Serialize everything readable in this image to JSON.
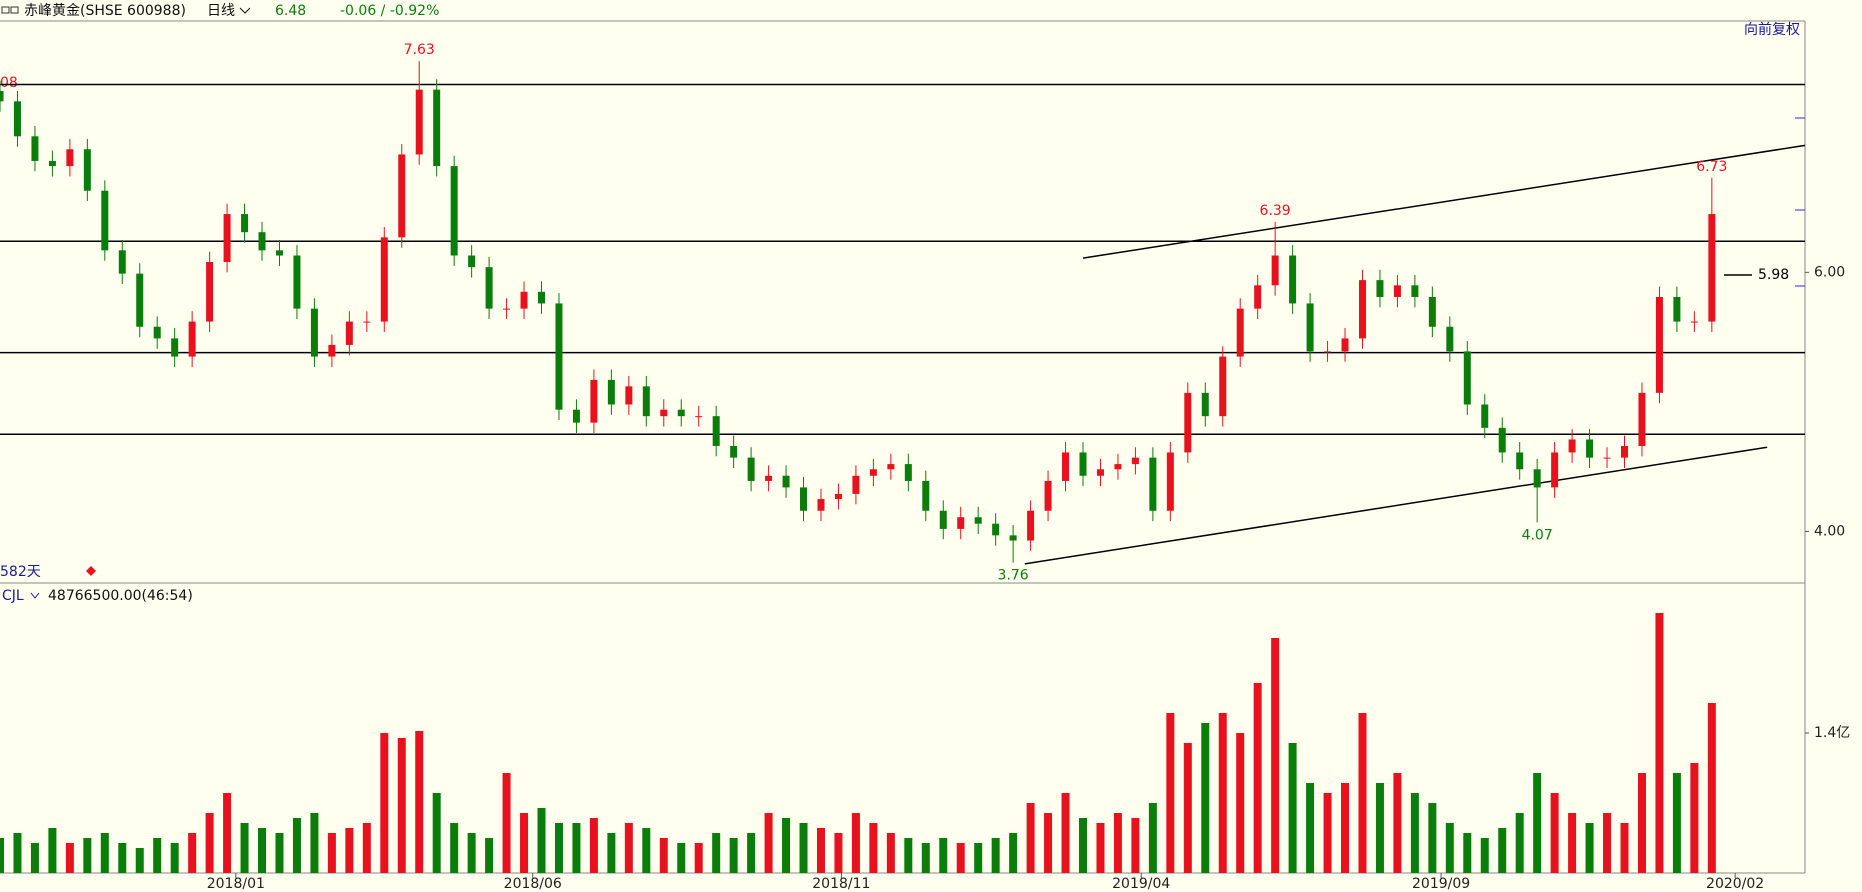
{
  "chart_data": {
    "type": "candlestick",
    "title": "赤峰黄金(SHSE 600988)",
    "period": "日线",
    "price": 6.48,
    "change": "-0.06 / -0.92%",
    "adjust": "向前复权",
    "day_count": "582天",
    "edge_label": "08",
    "up_color": "#e8121e",
    "down_color": "#0a7d0a",
    "x": [
      0,
      6,
      12,
      18,
      24,
      30,
      36,
      42,
      48,
      54,
      60,
      66,
      72,
      78,
      84,
      90,
      96,
      102,
      108,
      114,
      120,
      126,
      132,
      138,
      144,
      150,
      156,
      162,
      168,
      174,
      180,
      186,
      192,
      198,
      204,
      210,
      216,
      222,
      228,
      234,
      240,
      246,
      252,
      258,
      264,
      270,
      276,
      282,
      288,
      294,
      300,
      306,
      312,
      318,
      324,
      330,
      336,
      342,
      348,
      354,
      360,
      366,
      372,
      378,
      384,
      390,
      396,
      402,
      408,
      414,
      420,
      426,
      432,
      438,
      444,
      450,
      456,
      462,
      468,
      474,
      480,
      486,
      492,
      498,
      504,
      510,
      516,
      522,
      528,
      534,
      540,
      546,
      552,
      558,
      564,
      570,
      576,
      582,
      588
    ],
    "open": [
      7.4,
      7.32,
      7.05,
      6.86,
      6.82,
      6.95,
      6.63,
      6.17,
      5.99,
      5.58,
      5.49,
      5.35,
      5.62,
      6.08,
      6.45,
      6.31,
      6.17,
      6.13,
      5.72,
      5.35,
      5.44,
      5.62,
      5.62,
      6.27,
      6.91,
      7.41,
      6.82,
      6.13,
      6.04,
      5.72,
      5.72,
      5.85,
      5.76,
      4.94,
      4.84,
      5.17,
      4.98,
      5.12,
      4.89,
      4.94,
      4.89,
      4.89,
      4.66,
      4.57,
      4.39,
      4.43,
      4.34,
      4.16,
      4.25,
      4.29,
      4.43,
      4.48,
      4.52,
      4.39,
      4.16,
      4.02,
      4.11,
      4.06,
      3.97,
      3.93,
      4.16,
      4.39,
      4.61,
      4.43,
      4.48,
      4.52,
      4.57,
      4.16,
      4.61,
      5.07,
      4.89,
      5.35,
      5.72,
      5.9,
      6.13,
      5.76,
      5.39,
      5.39,
      5.49,
      5.94,
      5.81,
      5.9,
      5.81,
      5.58,
      5.39,
      4.98,
      4.8,
      4.61,
      4.48,
      4.34,
      4.61,
      4.71,
      4.57,
      4.57,
      4.66,
      5.07,
      5.81,
      5.62,
      5.62
    ],
    "high": [
      7.48,
      7.4,
      7.13,
      6.94,
      7.03,
      7.03,
      6.71,
      6.25,
      6.07,
      5.66,
      5.57,
      5.7,
      6.16,
      6.53,
      6.53,
      6.39,
      6.25,
      6.21,
      5.8,
      5.52,
      5.7,
      5.7,
      6.35,
      6.99,
      7.63,
      7.49,
      6.9,
      6.21,
      6.12,
      5.8,
      5.93,
      5.93,
      5.84,
      5.02,
      5.25,
      5.25,
      5.2,
      5.2,
      5.02,
      5.02,
      4.97,
      4.97,
      4.74,
      4.65,
      4.51,
      4.51,
      4.42,
      4.33,
      4.37,
      4.51,
      4.56,
      4.6,
      4.6,
      4.47,
      4.24,
      4.19,
      4.19,
      4.14,
      4.05,
      4.24,
      4.47,
      4.69,
      4.69,
      4.56,
      4.6,
      4.65,
      4.65,
      4.69,
      5.15,
      5.15,
      5.43,
      5.8,
      5.98,
      6.39,
      6.21,
      5.84,
      5.47,
      5.57,
      6.02,
      6.02,
      5.98,
      5.98,
      5.89,
      5.66,
      5.47,
      5.06,
      4.88,
      4.69,
      4.56,
      4.69,
      4.79,
      4.79,
      4.65,
      4.74,
      5.15,
      5.89,
      5.89,
      5.7,
      6.73
    ],
    "low": [
      7.24,
      6.97,
      6.78,
      6.74,
      6.74,
      6.55,
      6.09,
      5.91,
      5.5,
      5.41,
      5.27,
      5.27,
      5.54,
      6.0,
      6.23,
      6.09,
      6.05,
      5.64,
      5.27,
      5.27,
      5.36,
      5.54,
      5.54,
      6.19,
      6.83,
      6.74,
      6.05,
      5.96,
      5.64,
      5.64,
      5.64,
      5.68,
      4.86,
      4.76,
      4.76,
      4.9,
      4.9,
      4.81,
      4.81,
      4.81,
      4.81,
      4.58,
      4.49,
      4.31,
      4.31,
      4.26,
      4.08,
      4.08,
      4.17,
      4.21,
      4.35,
      4.4,
      4.31,
      4.08,
      3.94,
      3.94,
      3.98,
      3.89,
      3.76,
      3.85,
      4.08,
      4.31,
      4.35,
      4.35,
      4.4,
      4.44,
      4.08,
      4.08,
      4.53,
      4.81,
      4.81,
      5.27,
      5.64,
      5.82,
      5.68,
      5.31,
      5.31,
      5.31,
      5.41,
      5.73,
      5.73,
      5.73,
      5.5,
      5.31,
      4.9,
      4.72,
      4.53,
      4.4,
      4.07,
      4.26,
      4.53,
      4.49,
      4.49,
      4.49,
      4.58,
      4.99,
      5.54,
      5.54,
      5.54
    ],
    "close": [
      7.32,
      7.05,
      6.86,
      6.82,
      6.95,
      6.63,
      6.17,
      5.99,
      5.58,
      5.49,
      5.35,
      5.62,
      6.08,
      6.45,
      6.31,
      6.17,
      6.13,
      5.72,
      5.35,
      5.44,
      5.62,
      5.62,
      6.27,
      6.91,
      7.41,
      6.82,
      6.13,
      6.04,
      5.72,
      5.72,
      5.85,
      5.76,
      4.94,
      4.84,
      5.17,
      4.98,
      5.12,
      4.89,
      4.94,
      4.89,
      4.89,
      4.66,
      4.57,
      4.39,
      4.43,
      4.34,
      4.16,
      4.25,
      4.29,
      4.43,
      4.48,
      4.52,
      4.39,
      4.16,
      4.02,
      4.11,
      4.06,
      3.97,
      3.93,
      4.16,
      4.39,
      4.61,
      4.43,
      4.48,
      4.52,
      4.57,
      4.16,
      4.61,
      5.07,
      4.89,
      5.35,
      5.72,
      5.9,
      6.13,
      5.76,
      5.39,
      5.39,
      5.49,
      5.94,
      5.81,
      5.9,
      5.81,
      5.58,
      5.39,
      4.98,
      4.8,
      4.61,
      4.48,
      4.34,
      4.61,
      4.71,
      4.57,
      4.57,
      4.66,
      5.07,
      5.81,
      5.62,
      5.62,
      6.45
    ],
    "high_labels": [
      24,
      73,
      98
    ],
    "low_labels": [
      58,
      88
    ],
    "last_price": 5.98,
    "hlines": [
      7.45,
      6.24,
      5.38,
      4.75
    ],
    "trendlines": [
      {
        "x": [
          372,
          620
        ],
        "y": [
          6.11,
          6.98
        ]
      },
      {
        "x": [
          352,
          607
        ],
        "y": [
          3.75,
          4.65
        ]
      }
    ],
    "xlim": [
      0,
      620
    ],
    "ylim": [
      3.61,
      7.94
    ],
    "yticks": [
      {
        "value": 6,
        "label": "6.00"
      },
      {
        "value": 4,
        "label": "4.00"
      }
    ],
    "xticks": [
      {
        "value": 81,
        "label": "2018/01"
      },
      {
        "value": 183,
        "label": "2018/06"
      },
      {
        "value": 289,
        "label": "2018/11"
      },
      {
        "value": 392,
        "label": "2019/04"
      },
      {
        "value": 495,
        "label": "2019/09"
      },
      {
        "value": 596,
        "label": "2020/02"
      }
    ],
    "volume": {
      "name": "CJL",
      "readout": "48766500.00(46:54)",
      "values": [
        0.35,
        0.4,
        0.3,
        0.45,
        0.3,
        0.35,
        0.4,
        0.3,
        0.25,
        0.35,
        0.3,
        0.4,
        0.6,
        0.8,
        0.5,
        0.45,
        0.4,
        0.55,
        0.6,
        0.4,
        0.45,
        0.5,
        1.4,
        1.35,
        1.42,
        0.8,
        0.5,
        0.4,
        0.35,
        1.0,
        0.6,
        0.65,
        0.5,
        0.5,
        0.55,
        0.4,
        0.5,
        0.45,
        0.35,
        0.3,
        0.3,
        0.4,
        0.35,
        0.4,
        0.6,
        0.55,
        0.5,
        0.45,
        0.4,
        0.6,
        0.5,
        0.4,
        0.35,
        0.3,
        0.35,
        0.3,
        0.3,
        0.35,
        0.4,
        0.7,
        0.6,
        0.8,
        0.55,
        0.5,
        0.6,
        0.55,
        0.7,
        1.6,
        1.3,
        1.5,
        1.6,
        1.4,
        1.9,
        2.35,
        1.3,
        0.9,
        0.8,
        0.9,
        1.6,
        0.9,
        1.0,
        0.8,
        0.7,
        0.5,
        0.4,
        0.35,
        0.45,
        0.6,
        1.0,
        0.8,
        0.6,
        0.5,
        0.6,
        0.5,
        1.0,
        2.6,
        1.0,
        1.1,
        1.7
      ],
      "ylim": [
        0,
        2.8
      ],
      "yticks": [
        {
          "value": 1.4,
          "label": "1.4亿"
        }
      ]
    }
  }
}
